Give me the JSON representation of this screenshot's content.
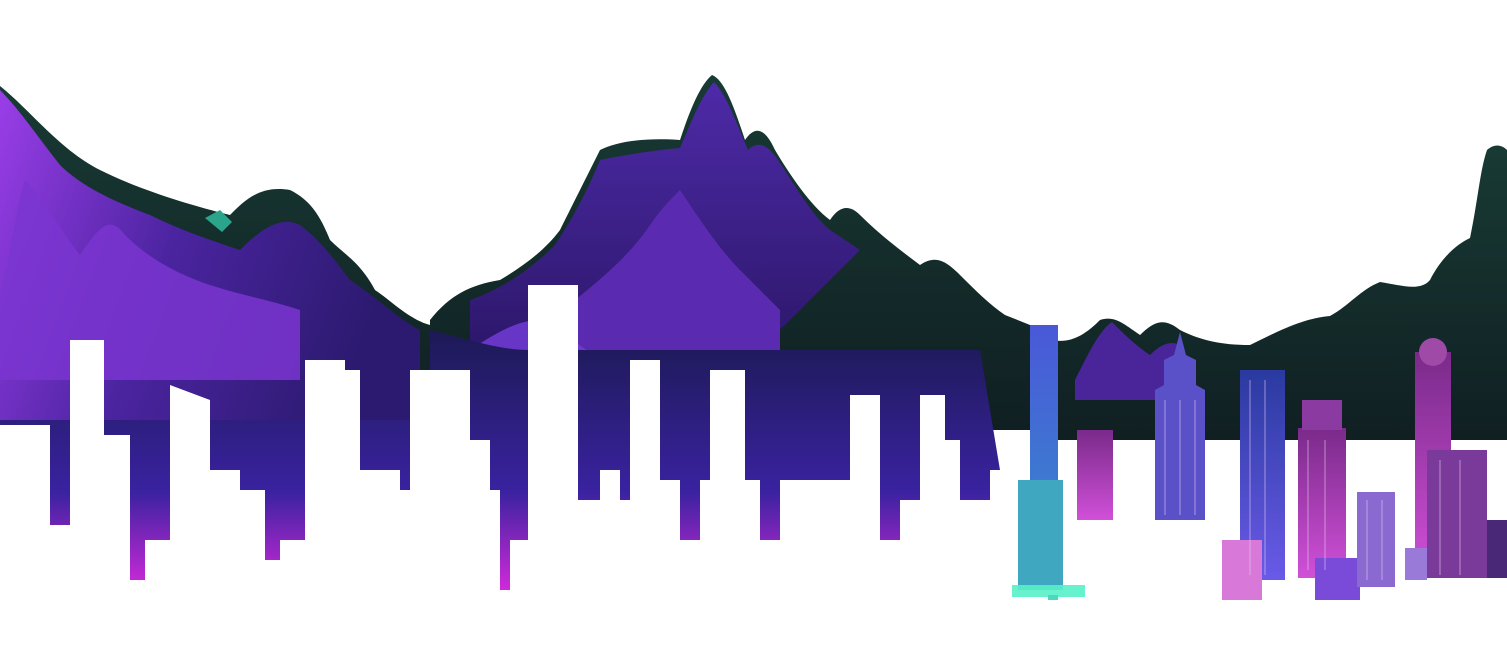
{
  "image": {
    "subject": "neon-city-skyline",
    "palette": {
      "background": "#ffffff",
      "mountain_dark": "#162a25",
      "mountain_purple": "#3a1c8c",
      "mountain_violet": "#5a2bb0",
      "mountain_light": "#8a3ee0",
      "neon_magenta": "#d62ad8",
      "neon_cyan": "#47e0c8",
      "neon_blue": "#3c4fd6",
      "tower_pink": "#b0459e",
      "tower_glass": "#4a5ac8"
    }
  }
}
